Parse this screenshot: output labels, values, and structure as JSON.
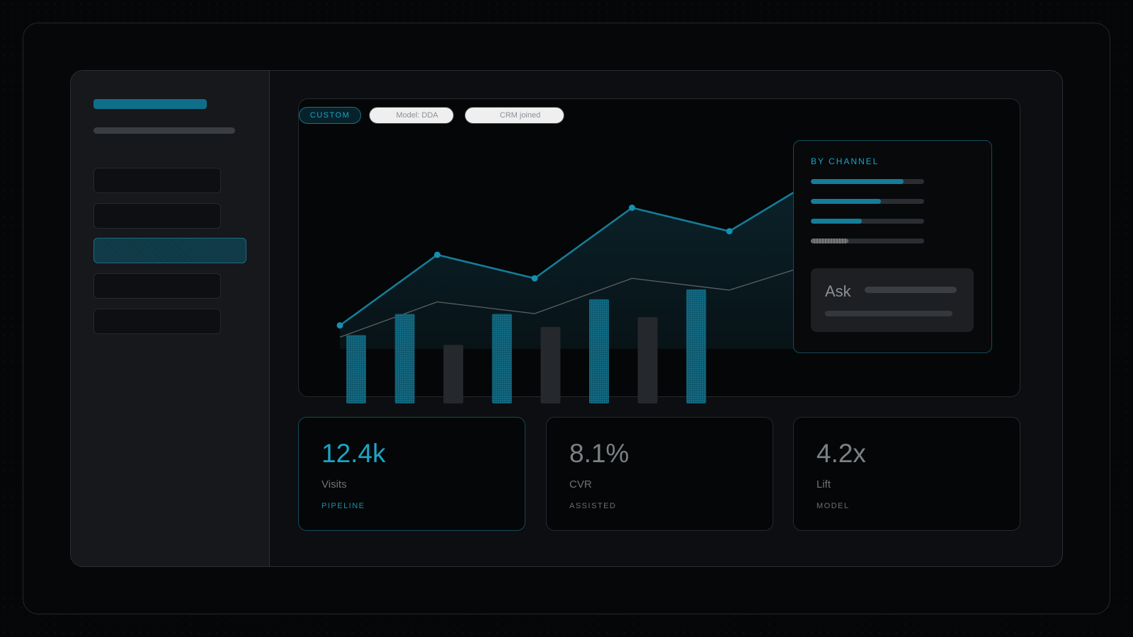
{
  "chips": [
    {
      "label": "CUSTOM",
      "active": true
    },
    {
      "label": "Model: DDA",
      "active": false
    },
    {
      "label": "CRM joined",
      "active": false
    }
  ],
  "sidebar": {
    "nav_items": [
      {
        "active": false
      },
      {
        "active": false
      },
      {
        "active": true
      },
      {
        "active": false
      },
      {
        "active": false
      }
    ]
  },
  "chart_data": {
    "type": "line",
    "series": [
      {
        "values": [
          10,
          40,
          30,
          60,
          50,
          75
        ],
        "style": "accent"
      },
      {
        "values": [
          5,
          20,
          15,
          30,
          25,
          38
        ],
        "style": "muted"
      }
    ],
    "bars": [
      {
        "value": 0.42,
        "style": "accent"
      },
      {
        "value": 0.55,
        "style": "accent"
      },
      {
        "value": 0.36,
        "style": "muted"
      },
      {
        "value": 0.55,
        "style": "accent"
      },
      {
        "value": 0.47,
        "style": "muted"
      },
      {
        "value": 0.64,
        "style": "accent"
      },
      {
        "value": 0.53,
        "style": "muted"
      },
      {
        "value": 0.7,
        "style": "accent"
      }
    ],
    "grid": false
  },
  "channel_panel": {
    "title": "BY CHANNEL",
    "bars": [
      {
        "value": 0.82,
        "style": "accent"
      },
      {
        "value": 0.62,
        "style": "accent"
      },
      {
        "value": 0.45,
        "style": "accent"
      },
      {
        "value": 0.33,
        "style": "muted"
      }
    ],
    "ask_label": "Ask"
  },
  "stats": [
    {
      "value": "12.4k",
      "label": "Visits",
      "tag": "PIPELINE",
      "accent": true
    },
    {
      "value": "8.1%",
      "label": "CVR",
      "tag": "ASSISTED",
      "accent": false
    },
    {
      "value": "4.2x",
      "label": "Lift",
      "tag": "MODEL",
      "accent": false
    }
  ],
  "colors": {
    "accent": "#157d99",
    "accent_text": "#1aa5c6",
    "muted_bar": "#2b2e32",
    "background": "#050607"
  }
}
